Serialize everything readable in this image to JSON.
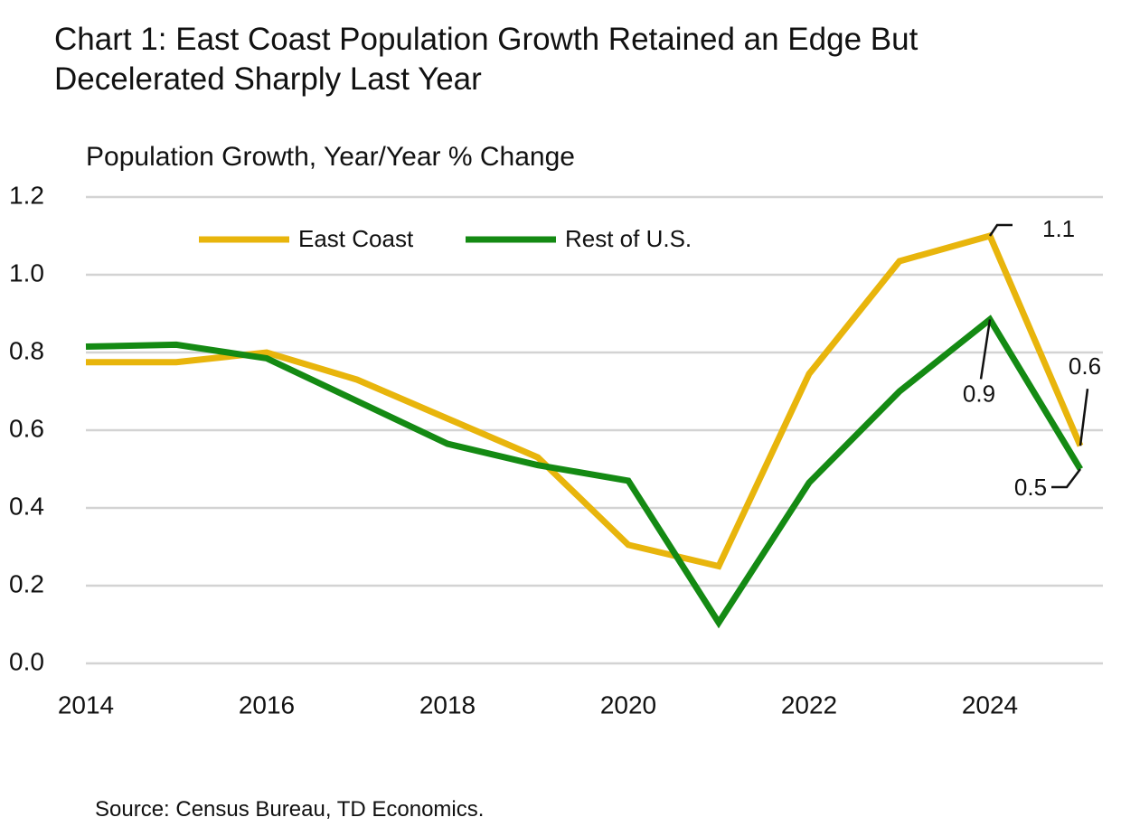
{
  "chart_data": {
    "type": "line",
    "title": "Chart 1: East Coast Population Growth Retained an Edge But Decelerated Sharply Last Year",
    "y_label": "Population Growth, Year/Year % Change",
    "source": "Source: Census Bureau, TD Economics.",
    "x": [
      2014,
      2015,
      2016,
      2017,
      2018,
      2019,
      2020,
      2021,
      2022,
      2023,
      2024,
      2025
    ],
    "series": [
      {
        "name": "East Coast",
        "color": "#e8b50c",
        "values": [
          0.775,
          0.775,
          0.8,
          0.73,
          0.63,
          0.53,
          0.305,
          0.25,
          0.745,
          1.035,
          1.1,
          0.56
        ],
        "value_labels": [
          null,
          null,
          null,
          null,
          null,
          null,
          null,
          null,
          null,
          null,
          "1.1",
          "0.6"
        ]
      },
      {
        "name": "Rest of U.S.",
        "color": "#148a13",
        "values": [
          0.815,
          0.82,
          0.785,
          0.675,
          0.565,
          0.51,
          0.47,
          0.105,
          0.465,
          0.7,
          0.885,
          0.5
        ],
        "value_labels": [
          null,
          null,
          null,
          null,
          null,
          null,
          null,
          null,
          null,
          null,
          "0.9",
          "0.5"
        ]
      }
    ],
    "xlim": [
      2014,
      2025
    ],
    "xticks": [
      2014,
      2016,
      2018,
      2020,
      2022,
      2024
    ],
    "ylim": [
      0,
      1.2
    ],
    "yticks": [
      {
        "value": 0,
        "label": "0.0"
      },
      0.2,
      0.4,
      0.6,
      0.8,
      {
        "value": 1,
        "label": "1.0"
      },
      1.2
    ],
    "grid": true,
    "legend": "top"
  }
}
